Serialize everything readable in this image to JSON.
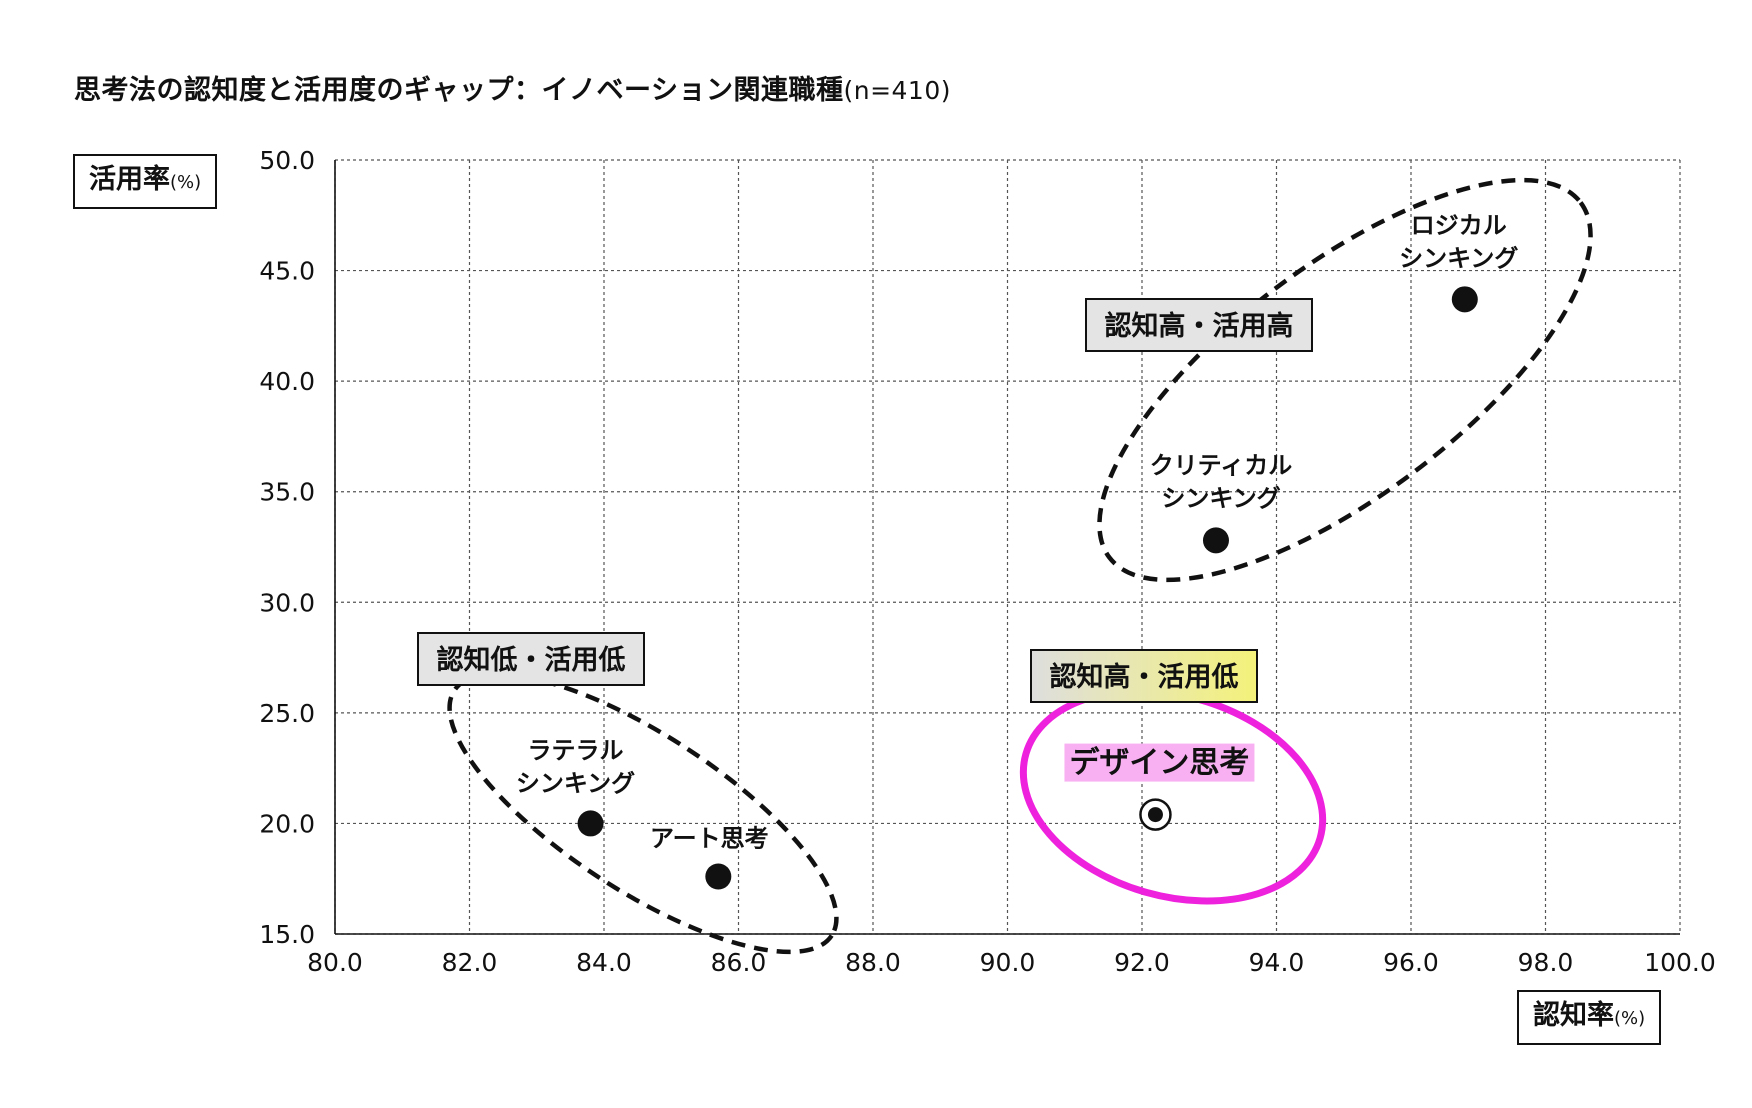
{
  "title": "思考法の認知度と活用度のギャップ：イノベーション関連職種",
  "title_n": "(n=410)",
  "y_axis": {
    "label": "活用率",
    "unit": "(%)"
  },
  "x_axis": {
    "label": "認知率",
    "unit": "(%)"
  },
  "colors": {
    "highlight": "#ee22dd",
    "highlight_fill": "#f8b0f2",
    "group_box": "#e4e4e4",
    "grid": "#555555"
  },
  "chart_data": {
    "type": "scatter",
    "xlim": [
      80.0,
      100.0
    ],
    "ylim": [
      15.0,
      50.0
    ],
    "x_ticks": [
      "80.0",
      "82.0",
      "84.0",
      "86.0",
      "88.0",
      "90.0",
      "92.0",
      "94.0",
      "96.0",
      "98.0",
      "100.0"
    ],
    "y_ticks": [
      "15.0",
      "20.0",
      "25.0",
      "30.0",
      "35.0",
      "40.0",
      "45.0",
      "50.0"
    ],
    "xlabel": "認知率(%)",
    "ylabel": "活用率(%)",
    "grid": true,
    "points": [
      {
        "name": "logical",
        "label": [
          "ロジカル",
          "シンキング"
        ],
        "x": 96.8,
        "y": 43.7,
        "highlight": false
      },
      {
        "name": "critical",
        "label": [
          "クリティカル",
          "シンキング"
        ],
        "x": 93.1,
        "y": 32.8,
        "highlight": false
      },
      {
        "name": "lateral",
        "label": [
          "ラテラル",
          "シンキング"
        ],
        "x": 83.8,
        "y": 20.0,
        "highlight": false
      },
      {
        "name": "art",
        "label": [
          "アート思考"
        ],
        "x": 85.7,
        "y": 17.6,
        "highlight": false
      },
      {
        "name": "design",
        "label": [
          "デザイン思考"
        ],
        "x": 92.2,
        "y": 20.4,
        "highlight": true
      }
    ],
    "groups": [
      {
        "name": "high-high",
        "label": "認知高・活用高",
        "members": [
          "logical",
          "critical"
        ]
      },
      {
        "name": "low-low",
        "label": "認知低・活用低",
        "members": [
          "lateral",
          "art"
        ]
      },
      {
        "name": "high-low",
        "label": "認知高・活用低",
        "members": [
          "design"
        ]
      }
    ]
  }
}
